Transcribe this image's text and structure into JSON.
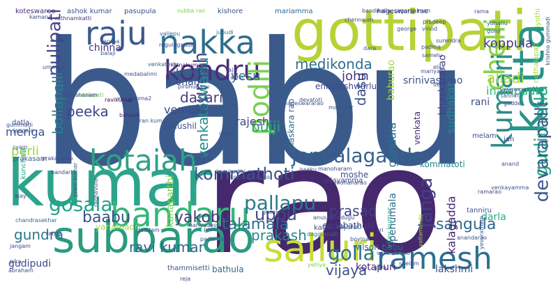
{
  "cloud": {
    "words": [
      {
        "text": "babu",
        "color": "#3b5a8c"
      },
      {
        "text": "rao",
        "color": "#46286e"
      },
      {
        "text": "kumar",
        "color": "#2ca38a"
      },
      {
        "text": "gottipati",
        "color": "#b5d335"
      },
      {
        "text": "katta",
        "color": "#27938a"
      },
      {
        "text": "subbarao",
        "color": "#2a9b7f"
      },
      {
        "text": "salluri",
        "color": "#c9dc38"
      },
      {
        "text": "ramesh",
        "color": "#2c6f8e"
      },
      {
        "text": "bandaru",
        "color": "#36b679"
      },
      {
        "text": "kotaiah",
        "color": "#2ea285"
      },
      {
        "text": "nakka",
        "color": "#2f6d8e"
      },
      {
        "text": "raju",
        "color": "#3b5a8c"
      },
      {
        "text": "kondru",
        "color": "#4a2f78"
      },
      {
        "text": "chelli",
        "color": "#86d349"
      },
      {
        "text": "kumari",
        "color": "#2d8d8c"
      },
      {
        "text": "podili",
        "color": "#7ad151"
      },
      {
        "text": "jonnalagadda",
        "color": "#35608d"
      },
      {
        "text": "gosala",
        "color": "#20a386"
      },
      {
        "text": "pallapu",
        "color": "#2a788e"
      },
      {
        "text": "kommathoti",
        "color": "#3a548c"
      },
      {
        "text": "suresh",
        "color": "#3f4a89"
      },
      {
        "text": "pulipati",
        "color": "#404688"
      },
      {
        "text": "golla",
        "color": "#2d718e"
      },
      {
        "text": "gudimetla",
        "color": "#25ab82"
      },
      {
        "text": "devarapalli",
        "color": "#38598c"
      },
      {
        "text": "janga",
        "color": "#424086"
      },
      {
        "text": "yakobu",
        "color": "#453882"
      },
      {
        "text": "uppu",
        "color": "#3f4788"
      },
      {
        "text": "baabu",
        "color": "#3b518b"
      },
      {
        "text": "talamala",
        "color": "#2e6e8e"
      },
      {
        "text": "sangula",
        "color": "#31688e"
      },
      {
        "text": "ravi kumar",
        "color": "#31678e"
      },
      {
        "text": "gundra",
        "color": "#2a778e"
      },
      {
        "text": "prakash",
        "color": "#25858e"
      },
      {
        "text": "bollapalli",
        "color": "#26828e"
      },
      {
        "text": "peeka",
        "color": "#404588"
      },
      {
        "text": "dasari",
        "color": "#433d84"
      },
      {
        "text": "medikonda",
        "color": "#2d708e"
      },
      {
        "text": "alladi",
        "color": "#a8db34"
      },
      {
        "text": "koppula",
        "color": "#443983"
      },
      {
        "text": "inampudi",
        "color": "#35b779"
      },
      {
        "text": "vijaya",
        "color": "#3b528b"
      },
      {
        "text": "prasad",
        "color": "#433e85"
      },
      {
        "text": "venkateswarlu",
        "color": "#228d8d"
      },
      {
        "text": "bujji",
        "color": "#2ca37c"
      },
      {
        "text": "dasu",
        "color": "#3a538b"
      },
      {
        "text": "rajesh",
        "color": "#404688"
      },
      {
        "text": "vemula",
        "color": "#3e4989"
      },
      {
        "text": "john",
        "color": "#453581"
      },
      {
        "text": "koti",
        "color": "#38588c"
      },
      {
        "text": "mohan",
        "color": "#3d4e8a"
      },
      {
        "text": "chinna",
        "color": "#46327e"
      },
      {
        "text": "lakshmi",
        "color": "#3e4c8a"
      },
      {
        "text": "srinivasarao",
        "color": "#3b528b"
      },
      {
        "text": "sudhakar",
        "color": "#23898e"
      },
      {
        "text": "kalagadda",
        "color": "#482878"
      },
      {
        "text": "penumala",
        "color": "#31688e"
      },
      {
        "text": "gundala",
        "color": "#2c728e"
      },
      {
        "text": "darla",
        "color": "#26ad81"
      },
      {
        "text": "kotapuri",
        "color": "#482979"
      },
      {
        "text": "wilson babu",
        "color": "#2d708e"
      },
      {
        "text": "rani",
        "color": "#3d4d8a"
      },
      {
        "text": "yesu",
        "color": "#2e6d8e"
      },
      {
        "text": "enkateshwarlu",
        "color": "#3e4989"
      },
      {
        "text": "venkata",
        "color": "#472c7a"
      },
      {
        "text": "vijayamma",
        "color": "#3e4a89"
      },
      {
        "text": "sodabathuni",
        "color": "#433d84"
      },
      {
        "text": "vijay kumar",
        "color": "#25ac82"
      },
      {
        "text": "moshe",
        "color": "#3d4d8a"
      },
      {
        "text": "kommatoti",
        "color": "#24868e"
      },
      {
        "text": "meriga",
        "color": "#3a548c"
      },
      {
        "text": "perli",
        "color": "#9bd93c"
      },
      {
        "text": "prakasam",
        "color": "#35608d"
      },
      {
        "text": "gudipudi",
        "color": "#3e4989"
      },
      {
        "text": "shushil",
        "color": "#3b528b"
      },
      {
        "text": "bathula",
        "color": "#31688e"
      },
      {
        "text": "koteswarao",
        "color": "#472d7b"
      },
      {
        "text": "ashok kumar",
        "color": "#3b528b"
      },
      {
        "text": "pasupula",
        "color": "#3e4989"
      },
      {
        "text": "subba rao",
        "color": "#7ad151"
      },
      {
        "text": "kishore",
        "color": "#3b528b"
      },
      {
        "text": "mariamma",
        "color": "#31688e"
      },
      {
        "text": "nageswara rao",
        "color": "#433e85"
      },
      {
        "text": "rathnamkatti",
        "color": "#46337f"
      },
      {
        "text": "vallepu",
        "color": "#31688e"
      },
      {
        "text": "regulagadda",
        "color": "#3e4989"
      },
      {
        "text": "jupudi",
        "color": "#2d708e"
      },
      {
        "text": "venkatesh",
        "color": "#31688e"
      },
      {
        "text": "medabalimi",
        "color": "#3b528b"
      },
      {
        "text": "nutalapati",
        "color": "#75d054"
      },
      {
        "text": "ravikumar",
        "color": "#440154"
      },
      {
        "text": "ratnakumari",
        "color": "#481769"
      },
      {
        "text": "madhavi",
        "color": "#31688e"
      },
      {
        "text": "pirbhudasu",
        "color": "#3e4989"
      },
      {
        "text": "balaiah",
        "color": "#482677"
      },
      {
        "text": "gonu",
        "color": "#3e4989"
      },
      {
        "text": "baburao",
        "color": "#a0da39"
      },
      {
        "text": "bhaskararao",
        "color": "#433e85"
      },
      {
        "text": "bhaskara rao",
        "color": "#31688e"
      },
      {
        "text": "devatoti",
        "color": "#3b528b"
      },
      {
        "text": "kasukurthi",
        "color": "#3b528b"
      },
      {
        "text": "koteswara rao",
        "color": "#3e4989"
      },
      {
        "text": "kanaparthi",
        "color": "#75d054"
      },
      {
        "text": "badugu",
        "color": "#3e4989"
      },
      {
        "text": "rajarao",
        "color": "#31688e"
      },
      {
        "text": "tanniru",
        "color": "#3b528b"
      },
      {
        "text": "melam",
        "color": "#3e4989"
      },
      {
        "text": "anand",
        "color": "#3b528b"
      },
      {
        "text": "jan",
        "color": "#3e4989"
      },
      {
        "text": "gummadi",
        "color": "#3b528b"
      },
      {
        "text": "datla",
        "color": "#3e4989"
      },
      {
        "text": "jangala",
        "color": "#3b528b"
      },
      {
        "text": "kunchala",
        "color": "#1fa187"
      },
      {
        "text": "ajay",
        "color": "#3e4989"
      },
      {
        "text": "ratna",
        "color": "#3e4989"
      },
      {
        "text": "chandrasekhar",
        "color": "#31688e"
      },
      {
        "text": "yanamadri",
        "color": "#a0da39"
      },
      {
        "text": "padarthi",
        "color": "#3e4989"
      },
      {
        "text": "daggumalli",
        "color": "#2d708e"
      },
      {
        "text": "boyina",
        "color": "#3b528b"
      },
      {
        "text": "kathi",
        "color": "#3e4989"
      },
      {
        "text": "sri",
        "color": "#3e4989"
      },
      {
        "text": "thammisetti",
        "color": "#3b528b"
      },
      {
        "text": "jangam",
        "color": "#3e4989"
      },
      {
        "text": "pika",
        "color": "#3b528b"
      },
      {
        "text": "abraham",
        "color": "#3b528b"
      },
      {
        "text": "reja",
        "color": "#3e4989"
      },
      {
        "text": "yelliya",
        "color": "#75d054"
      },
      {
        "text": "gera",
        "color": "#3e4989"
      },
      {
        "text": "venkata rao",
        "color": "#3b528b"
      },
      {
        "text": "seelam",
        "color": "#3e4989"
      },
      {
        "text": "anandarao",
        "color": "#3b528b"
      },
      {
        "text": "yesuratnam",
        "color": "#3b528b"
      },
      {
        "text": "ramarao",
        "color": "#3e4989"
      },
      {
        "text": "venkayamma",
        "color": "#3b528b"
      },
      {
        "text": "mariyadasu",
        "color": "#3e4989"
      },
      {
        "text": "prem kumar",
        "color": "#3b528b"
      },
      {
        "text": "raghavulu",
        "color": "#3b528b"
      },
      {
        "text": "yallamanda",
        "color": "#a0da39"
      },
      {
        "text": "manohar",
        "color": "#3b528b"
      },
      {
        "text": "manoharam",
        "color": "#3e4989"
      },
      {
        "text": "srinu",
        "color": "#3b528b"
      },
      {
        "text": "mohanarao",
        "color": "#3e4989"
      },
      {
        "text": "anusha",
        "color": "#3b528b"
      },
      {
        "text": "issaku",
        "color": "#3e4989"
      },
      {
        "text": "bandikalla",
        "color": "#3e4989"
      },
      {
        "text": "sagar",
        "color": "#3e4989"
      },
      {
        "text": "salman",
        "color": "#3b528b"
      },
      {
        "text": "rama",
        "color": "#3e4989"
      },
      {
        "text": "yohanu",
        "color": "#3b528b"
      },
      {
        "text": "gunji",
        "color": "#3b528b"
      },
      {
        "text": "pradeep",
        "color": "#3e4989"
      },
      {
        "text": "vinod",
        "color": "#3b528b"
      },
      {
        "text": "george",
        "color": "#3e4989"
      },
      {
        "text": "chennaiah",
        "color": "#3b528b"
      },
      {
        "text": "surendra",
        "color": "#3e4989"
      },
      {
        "text": "padma",
        "color": "#3b528b"
      },
      {
        "text": "samelu",
        "color": "#3e4989"
      },
      {
        "text": "balaji",
        "color": "#3b528b"
      },
      {
        "text": "aruna",
        "color": "#3b528b"
      },
      {
        "text": "ummadi",
        "color": "#3e4989"
      },
      {
        "text": "akhil",
        "color": "#3b528b"
      },
      {
        "text": "dara",
        "color": "#3b528b"
      },
      {
        "text": "raj",
        "color": "#3e4989"
      },
      {
        "text": "syam",
        "color": "#3b528b"
      },
      {
        "text": "bandari",
        "color": "#3e4989"
      },
      {
        "text": "gaddam",
        "color": "#3e4989"
      },
      {
        "text": "prem",
        "color": "#3b528b"
      },
      {
        "text": "gosal",
        "color": "#3e4989"
      },
      {
        "text": "jyothi",
        "color": "#a0da39"
      },
      {
        "text": "krishna gummadi",
        "color": "#3b528b"
      },
      {
        "text": "nuthalapati",
        "color": "#a0da39"
      },
      {
        "text": "devi",
        "color": "#3e4989"
      },
      {
        "text": "jayamma",
        "color": "#3b528b"
      },
      {
        "text": "tanniri",
        "color": "#3b528b"
      },
      {
        "text": "gadde",
        "color": "#3e4989"
      },
      {
        "text": "mariya",
        "color": "#3b528b"
      },
      {
        "text": "bhooshanam",
        "color": "#3e4989"
      },
      {
        "text": "kiran kumar",
        "color": "#3b528b"
      },
      {
        "text": "vijayamma2",
        "color": "#3e4989"
      },
      {
        "text": "nageswararao",
        "color": "#3b528b"
      },
      {
        "text": "prakasarao",
        "color": "#3e4989"
      },
      {
        "text": "pettela",
        "color": "#3b528b"
      },
      {
        "text": "kamana",
        "color": "#3e4989"
      },
      {
        "text": "elija",
        "color": "#3b528b"
      }
    ]
  }
}
